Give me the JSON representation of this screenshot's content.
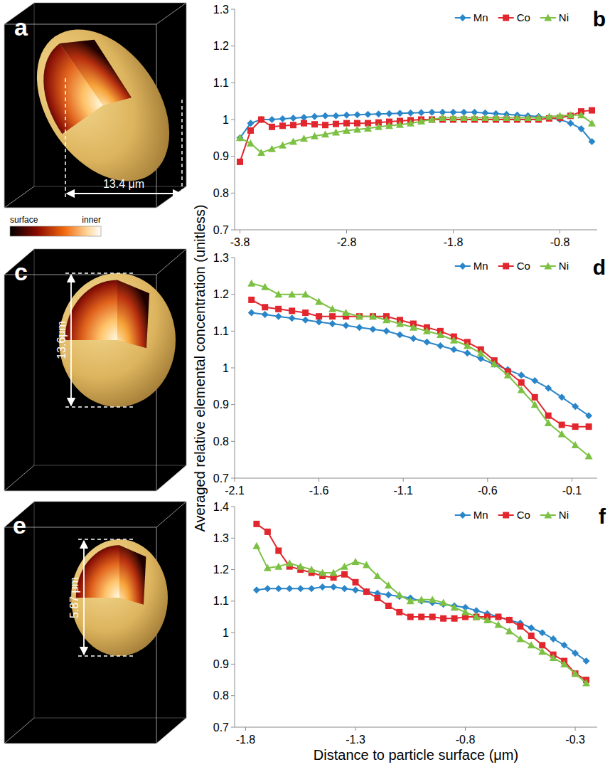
{
  "chart_data": [
    {
      "type": "line",
      "panel_label": "b",
      "x": [
        -3.8,
        -3.7,
        -3.6,
        -3.5,
        -3.4,
        -3.3,
        -3.2,
        -3.1,
        -3.0,
        -2.9,
        -2.8,
        -2.7,
        -2.6,
        -2.5,
        -2.4,
        -2.3,
        -2.2,
        -2.1,
        -2.0,
        -1.9,
        -1.8,
        -1.7,
        -1.6,
        -1.5,
        -1.4,
        -1.3,
        -1.2,
        -1.1,
        -1.0,
        -0.9,
        -0.8,
        -0.7,
        -0.6,
        -0.5
      ],
      "series": [
        {
          "name": "Mn",
          "color": "#2a86c8",
          "marker": "diamond",
          "values": [
            0.95,
            0.99,
            1.0,
            1.0,
            1.002,
            1.004,
            1.006,
            1.008,
            1.01,
            1.01,
            1.012,
            1.013,
            1.014,
            1.015,
            1.016,
            1.017,
            1.018,
            1.019,
            1.02,
            1.02,
            1.02,
            1.02,
            1.02,
            1.018,
            1.016,
            1.014,
            1.012,
            1.01,
            1.008,
            1.005,
            1.0,
            0.99,
            0.975,
            0.94
          ]
        },
        {
          "name": "Co",
          "color": "#e2262e",
          "marker": "square",
          "values": [
            0.885,
            0.97,
            1.0,
            0.98,
            0.983,
            0.985,
            0.99,
            0.987,
            0.985,
            0.988,
            0.99,
            0.99,
            0.99,
            0.992,
            0.994,
            0.996,
            0.998,
            1.0,
            1.0,
            1.0,
            1.0,
            1.0,
            1.0,
            1.0,
            1.0,
            1.0,
            1.0,
            1.0,
            1.0,
            1.003,
            1.005,
            1.01,
            1.022,
            1.025
          ]
        },
        {
          "name": "Ni",
          "color": "#7cc143",
          "marker": "triangle",
          "values": [
            0.95,
            0.935,
            0.91,
            0.92,
            0.93,
            0.94,
            0.948,
            0.955,
            0.96,
            0.965,
            0.97,
            0.973,
            0.976,
            0.98,
            0.983,
            0.986,
            0.99,
            0.995,
            1.0,
            1.005,
            1.005,
            1.005,
            1.005,
            1.005,
            1.005,
            1.005,
            1.005,
            1.005,
            1.005,
            1.008,
            1.01,
            1.012,
            1.012,
            0.99
          ]
        }
      ],
      "xlim": [
        -3.85,
        -0.45
      ],
      "xticks": [
        -3.8,
        -2.8,
        -1.8,
        -0.8
      ],
      "ylim": [
        0.7,
        1.3
      ],
      "yticks": [
        0.7,
        0.8,
        0.9,
        1,
        1.1,
        1.2,
        1.3
      ],
      "legend": "top-right",
      "grid": false
    },
    {
      "type": "line",
      "panel_label": "d",
      "ylabel": "Averaged relative elemental concentration (unitless)",
      "x": [
        -2.0,
        -1.92,
        -1.84,
        -1.76,
        -1.68,
        -1.6,
        -1.52,
        -1.44,
        -1.36,
        -1.28,
        -1.2,
        -1.12,
        -1.04,
        -0.96,
        -0.88,
        -0.8,
        -0.72,
        -0.64,
        -0.56,
        -0.48,
        -0.4,
        -0.32,
        -0.24,
        -0.16,
        -0.08,
        0
      ],
      "series": [
        {
          "name": "Mn",
          "color": "#2a86c8",
          "marker": "diamond",
          "values": [
            1.15,
            1.145,
            1.14,
            1.135,
            1.13,
            1.125,
            1.12,
            1.115,
            1.11,
            1.105,
            1.1,
            1.09,
            1.08,
            1.07,
            1.06,
            1.05,
            1.04,
            1.025,
            1.01,
            0.995,
            0.98,
            0.965,
            0.945,
            0.92,
            0.895,
            0.87
          ]
        },
        {
          "name": "Co",
          "color": "#e2262e",
          "marker": "square",
          "values": [
            1.185,
            1.165,
            1.16,
            1.155,
            1.15,
            1.14,
            1.14,
            1.14,
            1.14,
            1.14,
            1.14,
            1.13,
            1.12,
            1.11,
            1.1,
            1.085,
            1.07,
            1.05,
            1.02,
            0.99,
            0.96,
            0.92,
            0.87,
            0.845,
            0.84,
            0.84
          ]
        },
        {
          "name": "Ni",
          "color": "#7cc143",
          "marker": "triangle",
          "values": [
            1.23,
            1.22,
            1.2,
            1.2,
            1.2,
            1.18,
            1.16,
            1.15,
            1.14,
            1.14,
            1.13,
            1.12,
            1.11,
            1.1,
            1.09,
            1.075,
            1.06,
            1.04,
            1.01,
            0.98,
            0.94,
            0.9,
            0.85,
            0.82,
            0.79,
            0.76
          ]
        }
      ],
      "xlim": [
        -2.1,
        0.05
      ],
      "xticks": [
        -2.1,
        -1.6,
        -1.1,
        -0.6,
        -0.1
      ],
      "ylim": [
        0.7,
        1.3
      ],
      "yticks": [
        0.7,
        0.8,
        0.9,
        1,
        1.1,
        1.2,
        1.3
      ],
      "legend": "top-right",
      "grid": false
    },
    {
      "type": "line",
      "panel_label": "f",
      "xlabel": "Distance to particle surface (μm)",
      "x": [
        -1.75,
        -1.7,
        -1.65,
        -1.6,
        -1.55,
        -1.5,
        -1.45,
        -1.4,
        -1.35,
        -1.3,
        -1.25,
        -1.2,
        -1.15,
        -1.1,
        -1.05,
        -1.0,
        -0.95,
        -0.9,
        -0.85,
        -0.8,
        -0.75,
        -0.7,
        -0.65,
        -0.6,
        -0.55,
        -0.5,
        -0.45,
        -0.4,
        -0.35,
        -0.3,
        -0.25
      ],
      "series": [
        {
          "name": "Mn",
          "color": "#2a86c8",
          "marker": "diamond",
          "values": [
            1.135,
            1.14,
            1.14,
            1.14,
            1.14,
            1.14,
            1.145,
            1.145,
            1.14,
            1.135,
            1.13,
            1.125,
            1.12,
            1.115,
            1.11,
            1.1,
            1.095,
            1.09,
            1.085,
            1.08,
            1.07,
            1.06,
            1.05,
            1.04,
            1.03,
            1.015,
            1.0,
            0.98,
            0.96,
            0.935,
            0.91
          ]
        },
        {
          "name": "Co",
          "color": "#e2262e",
          "marker": "square",
          "values": [
            1.345,
            1.32,
            1.26,
            1.21,
            1.2,
            1.19,
            1.18,
            1.175,
            1.185,
            1.16,
            1.13,
            1.11,
            1.085,
            1.065,
            1.05,
            1.05,
            1.05,
            1.045,
            1.045,
            1.05,
            1.05,
            1.05,
            1.05,
            1.04,
            1.02,
            0.99,
            0.96,
            0.93,
            0.91,
            0.87,
            0.85
          ]
        },
        {
          "name": "Ni",
          "color": "#7cc143",
          "marker": "triangle",
          "values": [
            1.275,
            1.205,
            1.21,
            1.22,
            1.21,
            1.2,
            1.19,
            1.19,
            1.21,
            1.225,
            1.215,
            1.18,
            1.15,
            1.12,
            1.1,
            1.105,
            1.105,
            1.095,
            1.08,
            1.065,
            1.05,
            1.04,
            1.025,
            1.005,
            0.98,
            0.96,
            0.94,
            0.92,
            0.9,
            0.87,
            0.84
          ]
        }
      ],
      "xlim": [
        -1.85,
        -0.2
      ],
      "xticks": [
        -1.8,
        -1.3,
        -0.8,
        -0.3
      ],
      "ylim": [
        0.7,
        1.4
      ],
      "yticks": [
        0.7,
        0.8,
        0.9,
        1,
        1.1,
        1.2,
        1.3,
        1.4
      ],
      "legend": "top-right",
      "grid": false
    }
  ],
  "images": [
    {
      "panel_label": "a",
      "scale_label": "13.4 μm"
    },
    {
      "panel_label": "c",
      "scale_label": "13.6μm"
    },
    {
      "panel_label": "e",
      "scale_label": "5.87 μm"
    }
  ],
  "color_scale": {
    "low_label": "surface",
    "high_label": "inner"
  }
}
